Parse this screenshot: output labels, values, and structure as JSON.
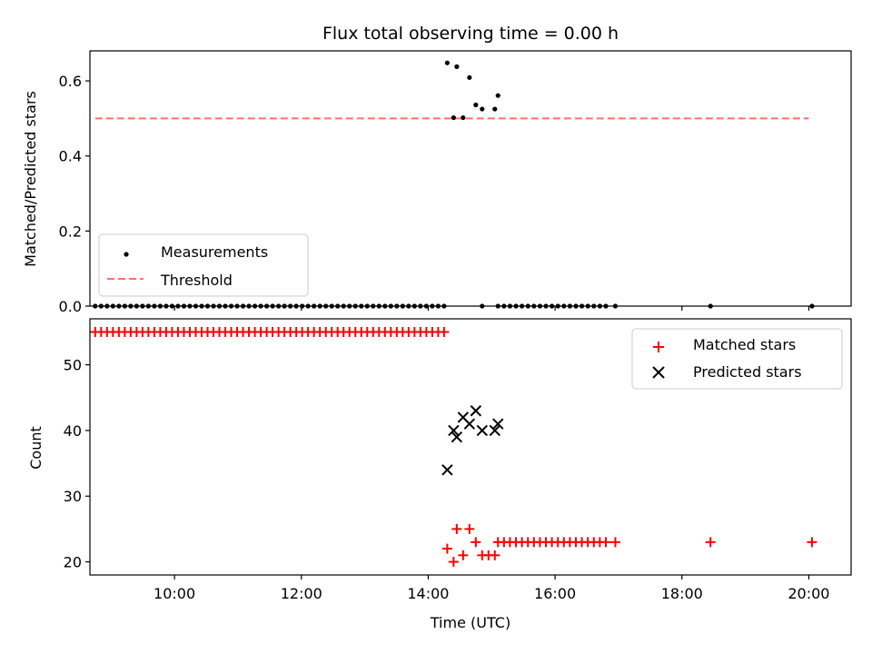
{
  "chart_data": [
    {
      "type": "scatter",
      "title": "Flux total observing time = 0.00 h",
      "ylabel": "Matched/Predicted stars",
      "xlim": [
        "08:40",
        "20:40"
      ],
      "ylim": [
        0.0,
        0.68
      ],
      "y_ticks": [
        "0.0",
        "0.2",
        "0.4",
        "0.6"
      ],
      "y_tick_values": [
        0.0,
        0.2,
        0.4,
        0.6
      ],
      "legend_position": "lower-left",
      "series": [
        {
          "name": "Measurements",
          "marker": "dot",
          "color": "#000000",
          "points": [
            {
              "x": "14:18",
              "y": 0.648
            },
            {
              "x": "14:27",
              "y": 0.638
            },
            {
              "x": "14:39",
              "y": 0.609
            },
            {
              "x": "14:45",
              "y": 0.536
            },
            {
              "x": "14:51",
              "y": 0.525
            },
            {
              "x": "15:03",
              "y": 0.525
            },
            {
              "x": "15:06",
              "y": 0.561
            },
            {
              "x": "14:24",
              "y": 0.502
            },
            {
              "x": "14:33",
              "y": 0.502
            }
          ],
          "zero_run_1": {
            "start": "08:45",
            "end": "14:15",
            "count": 60,
            "y": 0.0
          },
          "zero_points_extra": [
            {
              "x": "14:51",
              "y": 0.0
            }
          ],
          "zero_run_2": {
            "start": "15:06",
            "end": "16:48",
            "count": 19,
            "y": 0.0
          },
          "zero_points_tail": [
            {
              "x": "16:57",
              "y": 0.0
            },
            {
              "x": "18:27",
              "y": 0.0
            },
            {
              "x": "20:03",
              "y": 0.0
            }
          ]
        },
        {
          "name": "Threshold",
          "line_style": "dashed",
          "color": "#ff7070",
          "points": [
            {
              "x": "08:45",
              "y": 0.5
            },
            {
              "x": "20:00",
              "y": 0.5
            }
          ]
        }
      ]
    },
    {
      "type": "scatter",
      "xlabel": "Time (UTC)",
      "ylabel": "Count",
      "xlim": [
        "08:40",
        "20:40"
      ],
      "ylim": [
        18,
        57
      ],
      "x_ticks": [
        "10:00",
        "12:00",
        "14:00",
        "16:00",
        "18:00",
        "20:00"
      ],
      "y_ticks": [
        "20",
        "30",
        "40",
        "50"
      ],
      "y_tick_values": [
        20,
        30,
        40,
        50
      ],
      "legend_position": "upper-right",
      "series": [
        {
          "name": "Matched stars",
          "marker": "plus",
          "color": "#ff0000",
          "run_1": {
            "start": "08:45",
            "end": "14:15",
            "count": 60,
            "y": 55
          },
          "points": [
            {
              "x": "14:18",
              "y": 22
            },
            {
              "x": "14:24",
              "y": 20
            },
            {
              "x": "14:27",
              "y": 25
            },
            {
              "x": "14:33",
              "y": 21
            },
            {
              "x": "14:39",
              "y": 25
            },
            {
              "x": "14:45",
              "y": 23
            },
            {
              "x": "14:51",
              "y": 21
            },
            {
              "x": "14:57",
              "y": 21
            },
            {
              "x": "15:03",
              "y": 21
            }
          ],
          "run_2": {
            "start": "15:06",
            "end": "16:48",
            "count": 19,
            "y": 23
          },
          "points_tail": [
            {
              "x": "16:57",
              "y": 23
            },
            {
              "x": "18:27",
              "y": 23
            },
            {
              "x": "20:03",
              "y": 23
            }
          ]
        },
        {
          "name": "Predicted stars",
          "marker": "x",
          "color": "#000000",
          "points": [
            {
              "x": "14:18",
              "y": 34
            },
            {
              "x": "14:24",
              "y": 40
            },
            {
              "x": "14:27",
              "y": 39
            },
            {
              "x": "14:33",
              "y": 42
            },
            {
              "x": "14:39",
              "y": 41
            },
            {
              "x": "14:45",
              "y": 43
            },
            {
              "x": "14:51",
              "y": 40
            },
            {
              "x": "15:03",
              "y": 40
            },
            {
              "x": "15:06",
              "y": 41
            }
          ]
        }
      ]
    }
  ]
}
